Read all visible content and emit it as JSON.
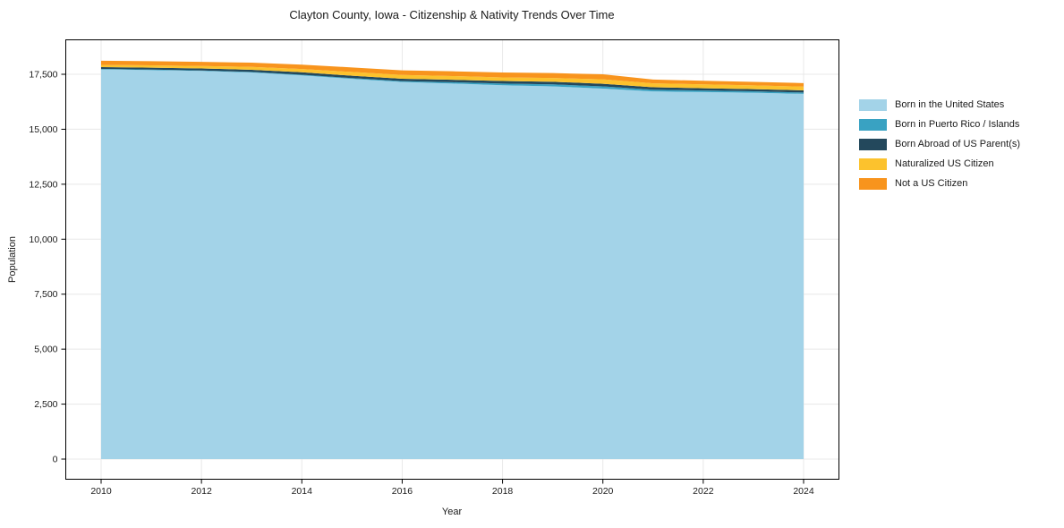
{
  "title": "Clayton County, Iowa - Citizenship & Nativity Trends Over Time",
  "background": "#ffffff",
  "text_color": "#1a1a1a",
  "grid_color": "#e8e8e8",
  "axis_color": "#000000",
  "chart_data": {
    "type": "area",
    "stacked": true,
    "title": "Clayton County, Iowa - Citizenship & Nativity Trends Over Time",
    "xlabel": "Year",
    "ylabel": "Population",
    "xlim": [
      2010,
      2024
    ],
    "ylim": [
      0,
      17500
    ],
    "grid": true,
    "legend_position": "right",
    "x": [
      2010,
      2011,
      2012,
      2013,
      2014,
      2015,
      2016,
      2017,
      2018,
      2019,
      2020,
      2021,
      2022,
      2023,
      2024
    ],
    "series": [
      {
        "name": "Born in the United States",
        "color": "#a3d3e8",
        "values": [
          17720,
          17690,
          17650,
          17580,
          17450,
          17290,
          17150,
          17080,
          17000,
          16950,
          16850,
          16720,
          16690,
          16660,
          16610
        ]
      },
      {
        "name": "Born in Puerto Rico / Islands",
        "color": "#39a2c2",
        "values": [
          25,
          25,
          25,
          25,
          30,
          35,
          40,
          60,
          80,
          90,
          100,
          80,
          70,
          65,
          60
        ]
      },
      {
        "name": "Born Abroad of US Parent(s)",
        "color": "#23485c",
        "values": [
          80,
          85,
          90,
          100,
          110,
          110,
          105,
          110,
          115,
          120,
          120,
          110,
          105,
          100,
          100
        ]
      },
      {
        "name": "Naturalized US Citizen",
        "color": "#fcc22d",
        "values": [
          100,
          105,
          110,
          130,
          150,
          170,
          175,
          170,
          165,
          170,
          200,
          180,
          175,
          170,
          170
        ]
      },
      {
        "name": "Not a US Citizen",
        "color": "#f8941d",
        "values": [
          190,
          190,
          190,
          195,
          200,
          205,
          210,
          215,
          220,
          225,
          230,
          170,
          165,
          160,
          160
        ]
      }
    ],
    "xticks": {
      "values": [
        2010,
        2012,
        2014,
        2016,
        2018,
        2020,
        2022,
        2024
      ],
      "labels": [
        "2010",
        "2012",
        "2014",
        "2016",
        "2018",
        "2020",
        "2022",
        "2024"
      ]
    },
    "yticks": {
      "values": [
        0,
        2500,
        5000,
        7500,
        10000,
        12500,
        15000,
        17500
      ],
      "labels": [
        "0",
        "2,500",
        "5,000",
        "7,500",
        "10,000",
        "12,500",
        "15,000",
        "17,500"
      ]
    }
  }
}
